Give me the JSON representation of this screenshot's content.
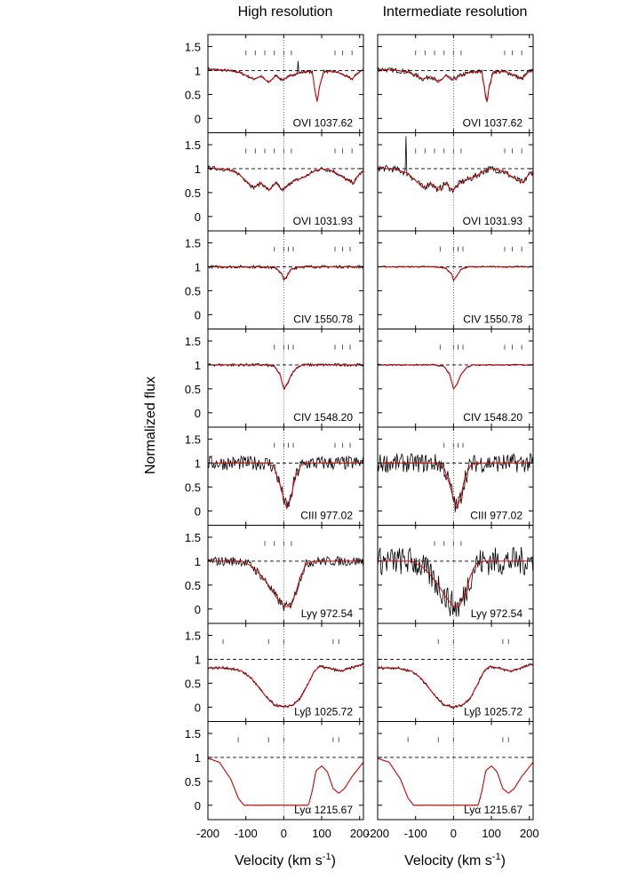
{
  "chart_data": {
    "type": "line",
    "columns": [
      "High resolution",
      "Intermediate resolution"
    ],
    "xlabel": "Velocity (km s",
    "xlabel_sup": "-1",
    "xlabel_close": ")",
    "ylabel": "Normalized flux",
    "xlim": [
      -200,
      210
    ],
    "ylim": [
      -0.3,
      1.75
    ],
    "xticks": [
      -200,
      -100,
      0,
      100,
      200
    ],
    "yticks": [
      0,
      0.5,
      1,
      1.5
    ],
    "ytick_labels": [
      "0",
      "0.5",
      "1",
      "1.5"
    ],
    "grid": false,
    "colors": {
      "data": "#000000",
      "model": "#d40000"
    },
    "panels": [
      {
        "label": "OVI 1037.62",
        "markers_high": [
          -100,
          -75,
          -50,
          -25,
          0,
          20,
          135,
          155,
          180
        ],
        "markers_int": [
          -100,
          -75,
          -50,
          -25,
          0,
          20,
          135,
          155,
          180
        ],
        "model": [
          [
            -200,
            1.03
          ],
          [
            -150,
            1.0
          ],
          [
            -120,
            0.97
          ],
          [
            -100,
            0.9
          ],
          [
            -80,
            0.82
          ],
          [
            -60,
            0.88
          ],
          [
            -40,
            0.75
          ],
          [
            -20,
            0.9
          ],
          [
            -5,
            0.8
          ],
          [
            0,
            0.82
          ],
          [
            20,
            0.9
          ],
          [
            40,
            0.95
          ],
          [
            60,
            0.98
          ],
          [
            75,
            0.97
          ],
          [
            82,
            0.6
          ],
          [
            88,
            0.35
          ],
          [
            94,
            0.65
          ],
          [
            105,
            0.98
          ],
          [
            140,
            0.97
          ],
          [
            160,
            0.9
          ],
          [
            180,
            0.82
          ],
          [
            195,
            0.95
          ],
          [
            210,
            1.02
          ]
        ],
        "noise_high": 0.03,
        "noise_int": 0.05,
        "spike_high": [
          [
            38,
            1.2
          ]
        ]
      },
      {
        "label": "OVI 1031.93",
        "markers_high": [
          -100,
          -75,
          -50,
          -25,
          0,
          20,
          135,
          155,
          180
        ],
        "markers_int": [
          -100,
          -75,
          -50,
          -25,
          0,
          20,
          135,
          155,
          180
        ],
        "model": [
          [
            -200,
            1.02
          ],
          [
            -150,
            0.98
          ],
          [
            -120,
            0.9
          ],
          [
            -100,
            0.75
          ],
          [
            -80,
            0.6
          ],
          [
            -60,
            0.7
          ],
          [
            -40,
            0.55
          ],
          [
            -20,
            0.7
          ],
          [
            -5,
            0.55
          ],
          [
            5,
            0.6
          ],
          [
            20,
            0.72
          ],
          [
            40,
            0.78
          ],
          [
            60,
            0.85
          ],
          [
            80,
            0.95
          ],
          [
            100,
            1.0
          ],
          [
            130,
            0.95
          ],
          [
            150,
            0.85
          ],
          [
            170,
            0.75
          ],
          [
            185,
            0.7
          ],
          [
            195,
            0.85
          ],
          [
            210,
            0.95
          ]
        ],
        "noise_high": 0.04,
        "noise_int": 0.07,
        "spike_int": [
          [
            -125,
            1.68
          ]
        ]
      },
      {
        "label": "CIV 1550.78",
        "markers_high": [
          -25,
          0,
          12,
          25,
          135,
          155,
          175
        ],
        "markers_int": [
          -35,
          0,
          12,
          25,
          135,
          155,
          180
        ],
        "model": [
          [
            -200,
            1.0
          ],
          [
            -50,
            1.0
          ],
          [
            -20,
            0.97
          ],
          [
            -5,
            0.85
          ],
          [
            0,
            0.72
          ],
          [
            8,
            0.8
          ],
          [
            20,
            0.95
          ],
          [
            40,
            1.0
          ],
          [
            210,
            1.0
          ]
        ],
        "noise_high": 0.03,
        "noise_int": 0.015
      },
      {
        "label": "CIV 1548.20",
        "markers_high": [
          -25,
          0,
          12,
          25,
          135,
          155,
          175
        ],
        "markers_int": [
          -35,
          0,
          12,
          25,
          135,
          155,
          180
        ],
        "model": [
          [
            -200,
            1.0
          ],
          [
            -50,
            1.0
          ],
          [
            -25,
            0.97
          ],
          [
            -10,
            0.8
          ],
          [
            0,
            0.5
          ],
          [
            8,
            0.58
          ],
          [
            20,
            0.8
          ],
          [
            35,
            0.95
          ],
          [
            50,
            1.0
          ],
          [
            210,
            1.0
          ]
        ],
        "noise_high": 0.03,
        "noise_int": 0.015
      },
      {
        "label": "CIII 977.02",
        "markers_high": [
          -25,
          0,
          12,
          25,
          135,
          155,
          175
        ],
        "markers_int": [
          -25,
          0,
          12,
          25
        ],
        "model": [
          [
            -200,
            1.0
          ],
          [
            -40,
            1.0
          ],
          [
            -25,
            0.9
          ],
          [
            -10,
            0.55
          ],
          [
            0,
            0.25
          ],
          [
            8,
            0.05
          ],
          [
            18,
            0.25
          ],
          [
            30,
            0.7
          ],
          [
            45,
            0.95
          ],
          [
            60,
            1.0
          ],
          [
            210,
            1.0
          ]
        ],
        "noise_high": 0.15,
        "noise_int": 0.2
      },
      {
        "label": "Lyγ 972.54",
        "markers_high": [
          -50,
          -25,
          0,
          20
        ],
        "markers_int": [
          -50,
          -25,
          0,
          20
        ],
        "model": [
          [
            -200,
            1.0
          ],
          [
            -110,
            1.0
          ],
          [
            -85,
            0.9
          ],
          [
            -60,
            0.7
          ],
          [
            -40,
            0.5
          ],
          [
            -20,
            0.25
          ],
          [
            0,
            0.05
          ],
          [
            15,
            0.05
          ],
          [
            30,
            0.3
          ],
          [
            45,
            0.7
          ],
          [
            60,
            0.95
          ],
          [
            80,
            1.0
          ],
          [
            210,
            1.0
          ]
        ],
        "noise_high": 0.1,
        "noise_int": 0.3
      },
      {
        "label": "Lyβ 1025.72",
        "markers_high": [
          -160,
          -40,
          0,
          130,
          145
        ],
        "markers_int": [
          -40,
          0,
          130,
          145
        ],
        "model": [
          [
            -200,
            0.82
          ],
          [
            -150,
            0.82
          ],
          [
            -110,
            0.75
          ],
          [
            -85,
            0.6
          ],
          [
            -65,
            0.4
          ],
          [
            -45,
            0.2
          ],
          [
            -25,
            0.05
          ],
          [
            0,
            0.0
          ],
          [
            25,
            0.05
          ],
          [
            45,
            0.2
          ],
          [
            65,
            0.5
          ],
          [
            80,
            0.75
          ],
          [
            95,
            0.85
          ],
          [
            115,
            0.82
          ],
          [
            135,
            0.78
          ],
          [
            150,
            0.75
          ],
          [
            170,
            0.8
          ],
          [
            210,
            0.9
          ]
        ],
        "noise_high": 0.03,
        "noise_int": 0.03
      },
      {
        "label": "Lyα 1215.67",
        "markers_high": [
          -120,
          -40,
          0,
          130,
          145
        ],
        "markers_int": [
          -120,
          -40,
          0,
          130,
          145
        ],
        "model": [
          [
            -200,
            0.98
          ],
          [
            -170,
            0.9
          ],
          [
            -140,
            0.55
          ],
          [
            -120,
            0.15
          ],
          [
            -105,
            0.0
          ],
          [
            65,
            0.0
          ],
          [
            75,
            0.3
          ],
          [
            85,
            0.72
          ],
          [
            100,
            0.82
          ],
          [
            115,
            0.7
          ],
          [
            130,
            0.35
          ],
          [
            145,
            0.25
          ],
          [
            160,
            0.35
          ],
          [
            180,
            0.6
          ],
          [
            200,
            0.8
          ],
          [
            210,
            0.9
          ]
        ],
        "noise_high": 0.005,
        "noise_int": 0.005
      }
    ]
  }
}
